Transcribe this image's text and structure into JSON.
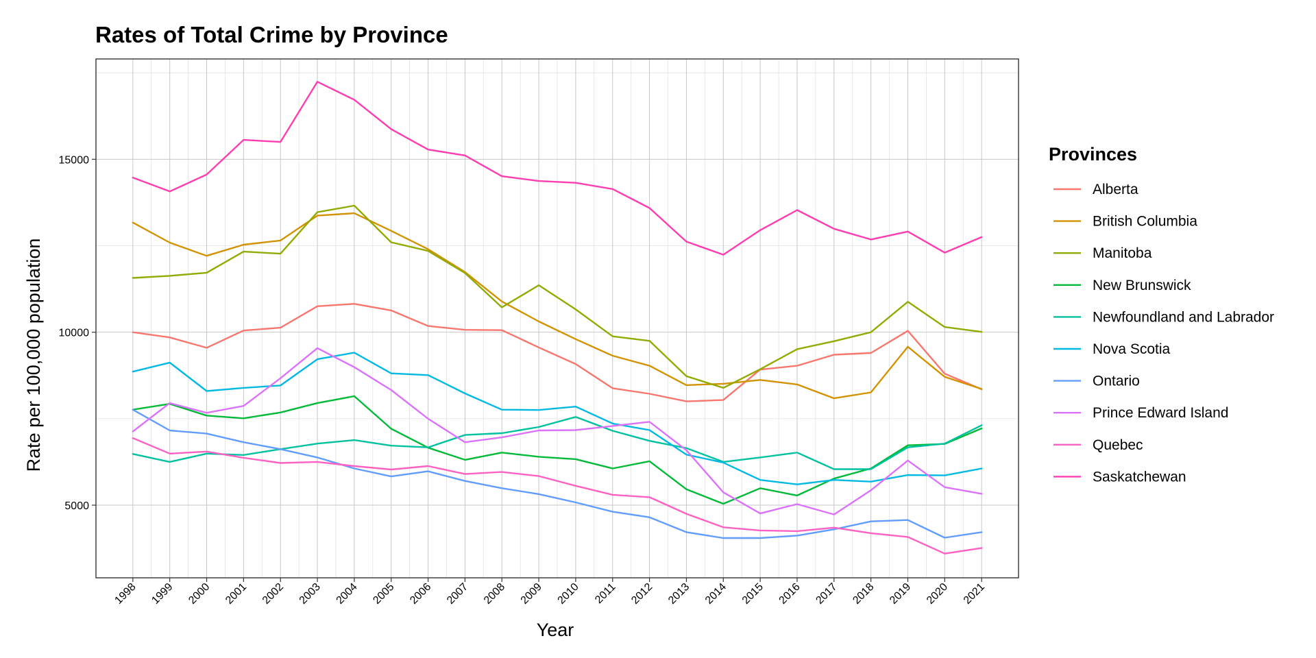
{
  "chart_data": {
    "type": "line",
    "title": "Rates of Total Crime by Province",
    "xlabel": "Year",
    "ylabel": "Rate per 100,000 population",
    "x": [
      1998,
      1999,
      2000,
      2001,
      2002,
      2003,
      2004,
      2005,
      2006,
      2007,
      2008,
      2009,
      2010,
      2011,
      2012,
      2013,
      2014,
      2015,
      2016,
      2017,
      2018,
      2019,
      2020,
      2021
    ],
    "xlim": [
      1997,
      2022
    ],
    "ylim": [
      2900,
      17900
    ],
    "yticks": [
      5000,
      10000,
      15000
    ],
    "ytick_labels": [
      "5000",
      "10000",
      "15000"
    ],
    "grid": true,
    "legend_title": "Provinces",
    "legend_position": "right",
    "series": [
      {
        "name": "Alberta",
        "color": "#F8766D",
        "values": [
          10000,
          9850,
          9550,
          10050,
          10130,
          10750,
          10820,
          10630,
          10180,
          10070,
          10060,
          9560,
          9080,
          8380,
          8220,
          8000,
          8040,
          8920,
          9030,
          9350,
          9400,
          10040,
          8800,
          8350
        ]
      },
      {
        "name": "British Columbia",
        "color": "#D39200",
        "values": [
          13170,
          12590,
          12210,
          12530,
          12650,
          13370,
          13440,
          12930,
          12400,
          11740,
          10890,
          10310,
          9800,
          9320,
          9030,
          8470,
          8510,
          8620,
          8490,
          8090,
          8260,
          9580,
          8710,
          8360
        ]
      },
      {
        "name": "Manitoba",
        "color": "#93AA00",
        "values": [
          11570,
          11630,
          11720,
          12330,
          12270,
          13470,
          13660,
          12600,
          12350,
          11710,
          10720,
          11360,
          10660,
          9880,
          9750,
          8730,
          8390,
          8930,
          9510,
          9740,
          10000,
          10880,
          10150,
          10010
        ]
      },
      {
        "name": "New Brunswick",
        "color": "#00BA38",
        "values": [
          7760,
          7930,
          7590,
          7510,
          7680,
          7950,
          8150,
          7210,
          6660,
          6310,
          6520,
          6400,
          6330,
          6060,
          6270,
          5460,
          5040,
          5490,
          5280,
          5770,
          6060,
          6730,
          6770,
          7220
        ]
      },
      {
        "name": "Newfoundland and Labrador",
        "color": "#00C19F",
        "values": [
          6480,
          6250,
          6490,
          6450,
          6620,
          6780,
          6880,
          6720,
          6670,
          7030,
          7080,
          7260,
          7550,
          7150,
          6860,
          6650,
          6250,
          6380,
          6520,
          6040,
          6040,
          6670,
          6780,
          7310
        ]
      },
      {
        "name": "Nova Scotia",
        "color": "#00B9E3",
        "values": [
          8860,
          9120,
          8300,
          8390,
          8460,
          9220,
          9410,
          8810,
          8760,
          8230,
          7760,
          7750,
          7850,
          7360,
          7170,
          6460,
          6230,
          5730,
          5600,
          5730,
          5680,
          5870,
          5860,
          6060
        ]
      },
      {
        "name": "Ontario",
        "color": "#619CFF",
        "values": [
          7760,
          7160,
          7070,
          6820,
          6620,
          6380,
          6060,
          5830,
          5980,
          5700,
          5490,
          5320,
          5080,
          4810,
          4650,
          4220,
          4050,
          4050,
          4120,
          4300,
          4530,
          4570,
          4060,
          4220
        ]
      },
      {
        "name": "Prince Edward Island",
        "color": "#DB72FB",
        "values": [
          7130,
          7950,
          7670,
          7870,
          8670,
          9540,
          8990,
          8330,
          7500,
          6820,
          6960,
          7160,
          7170,
          7290,
          7410,
          6590,
          5370,
          4760,
          5030,
          4730,
          5430,
          6290,
          5520,
          5330
        ]
      },
      {
        "name": "Quebec",
        "color": "#FF61C3",
        "values": [
          6940,
          6490,
          6550,
          6370,
          6220,
          6250,
          6130,
          6030,
          6130,
          5900,
          5960,
          5840,
          5560,
          5300,
          5230,
          4750,
          4360,
          4270,
          4250,
          4350,
          4190,
          4080,
          3600,
          3760
        ]
      },
      {
        "name": "Saskatchewan",
        "color": "#FF3DB0",
        "values": [
          14470,
          14070,
          14560,
          15560,
          15500,
          17240,
          16720,
          15870,
          15280,
          15110,
          14510,
          14370,
          14320,
          14140,
          13590,
          12620,
          12240,
          12950,
          13530,
          12990,
          12680,
          12910,
          12300,
          12750
        ]
      }
    ]
  }
}
